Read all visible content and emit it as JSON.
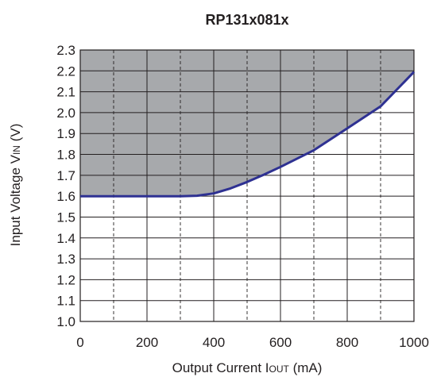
{
  "chart_data": {
    "type": "line",
    "title": "RP131x081x",
    "xlabel": {
      "main": "Output Current I",
      "sub": "OUT",
      "unit": " (mA)"
    },
    "ylabel": {
      "main": "Input Voltage V",
      "sub": "IN",
      "unit": " (V)"
    },
    "xlim": [
      0,
      1000
    ],
    "ylim": [
      1.0,
      2.3
    ],
    "x_ticks": [
      0,
      200,
      400,
      600,
      800,
      1000
    ],
    "x_tick_labels": [
      "0",
      "200",
      "400",
      "600",
      "800",
      "1000"
    ],
    "x_minor_dashed": [
      100,
      300,
      500,
      700,
      900
    ],
    "y_ticks": [
      1.0,
      1.1,
      1.2,
      1.3,
      1.4,
      1.5,
      1.6,
      1.7,
      1.8,
      1.9,
      2.0,
      2.1,
      2.2,
      2.3
    ],
    "y_tick_labels": [
      "1.0",
      "1.1",
      "1.2",
      "1.3",
      "1.4",
      "1.5",
      "1.6",
      "1.7",
      "1.8",
      "1.9",
      "2.0",
      "2.1",
      "2.2",
      "2.3"
    ],
    "grid": true,
    "series": [
      {
        "x": [
          0,
          100,
          200,
          300,
          350,
          400,
          450,
          500,
          550,
          600,
          650,
          700,
          800,
          900,
          1000
        ],
        "y": [
          1.6,
          1.6,
          1.6,
          1.6,
          1.602,
          1.613,
          1.637,
          1.668,
          1.703,
          1.74,
          1.78,
          1.82,
          1.925,
          2.03,
          2.195
        ]
      }
    ],
    "shaded_region": "above-curve",
    "colors": {
      "line": "#2e3192",
      "fill": "#a7a9ac",
      "grid": "#231f20",
      "text": "#231f20"
    }
  }
}
